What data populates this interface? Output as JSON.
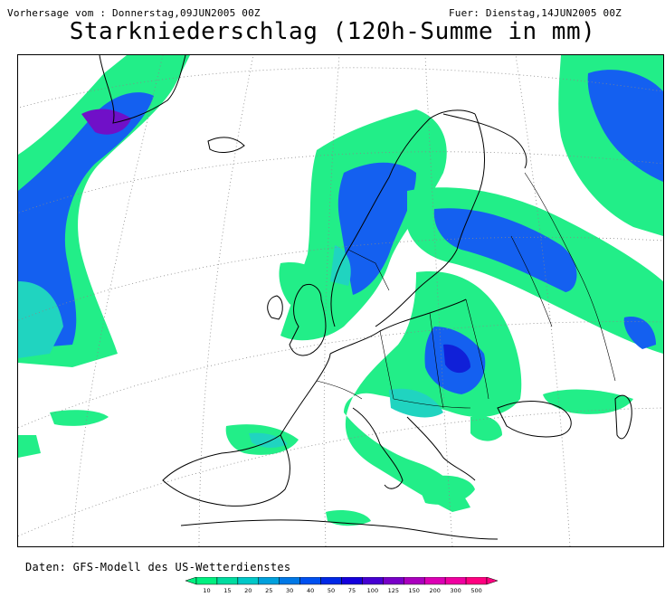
{
  "header": {
    "left": "Vorhersage vom : Donnerstag,09JUN2005 00Z",
    "right": "Fuer: Dienstag,14JUN2005 00Z",
    "title": "Starkniederschlag (120h-Summe in mm)"
  },
  "footer": {
    "source": "Daten: GFS-Modell des US-Wetterdienstes"
  },
  "legend": {
    "thresholds": [
      "10",
      "15",
      "20",
      "25",
      "30",
      "40",
      "50",
      "75",
      "100",
      "125",
      "150",
      "200",
      "300",
      "500"
    ],
    "colors": [
      "#00f080",
      "#00dca0",
      "#00c8c8",
      "#00a0dc",
      "#0078e6",
      "#0050f0",
      "#0028e6",
      "#1400dc",
      "#4600d2",
      "#7800c8",
      "#aa00be",
      "#dc00b4",
      "#f000a0",
      "#ff0080"
    ]
  },
  "map": {
    "projection": "polar stereographic",
    "region": "Europe / North Atlantic",
    "precip_colors": {
      "light": "#22ee88",
      "mid": "#20d4c0",
      "cyan": "#14b8e6",
      "blue": "#1460f0",
      "dark": "#1020d8",
      "violet": "#7010c8"
    }
  }
}
